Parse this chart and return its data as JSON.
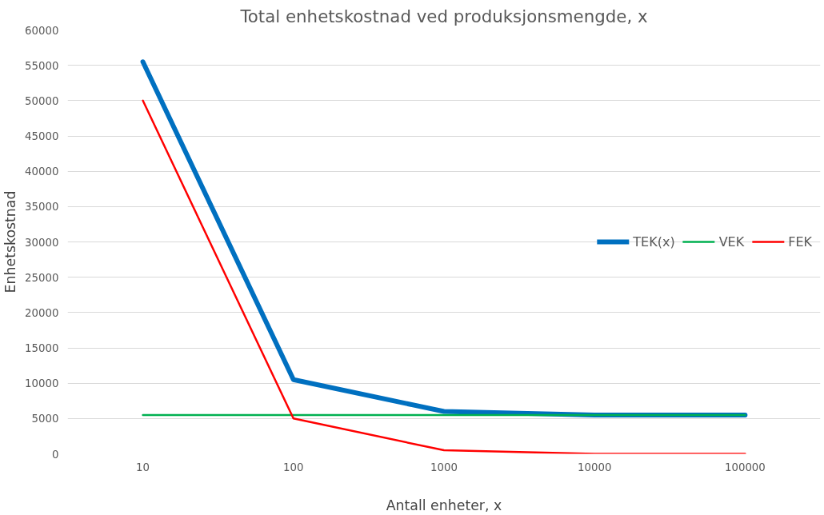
{
  "chart_data": {
    "type": "line",
    "title": "Total enhetskostnad ved produksjonsmengde, x",
    "xlabel": "Antall enheter, x",
    "ylabel": "Enhetskostnad",
    "categories": [
      "10",
      "100",
      "1000",
      "10000",
      "100000"
    ],
    "series": [
      {
        "name": "TEK(x)",
        "color": "#0070c0",
        "values": [
          55500,
          10500,
          6000,
          5500,
          5500
        ]
      },
      {
        "name": "VEK",
        "color": "#00b050",
        "values": [
          5500,
          5500,
          5500,
          5500,
          5500
        ]
      },
      {
        "name": "FEK",
        "color": "#ff0000",
        "values": [
          50000,
          5000,
          500,
          0,
          0
        ]
      }
    ],
    "ylim": [
      0,
      60000
    ],
    "yticks": [
      0,
      5000,
      10000,
      15000,
      20000,
      25000,
      30000,
      35000,
      40000,
      45000,
      50000,
      55000,
      60000
    ],
    "grid": "y",
    "legend": "right",
    "marker": "none",
    "line_style": "solid"
  }
}
